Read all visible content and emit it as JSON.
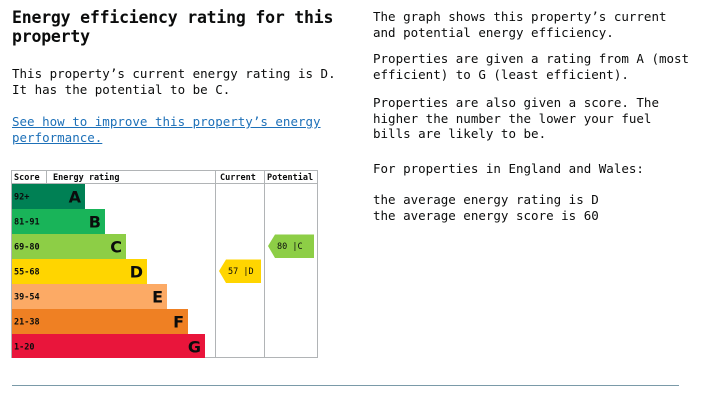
{
  "left": {
    "title": "Energy efficiency rating for this property",
    "current_text": "This property’s current energy rating is D. It has the potential to be C.",
    "link_text": "See how to improve this property’s energy performance."
  },
  "right": {
    "p1": "The graph shows this property’s current and potential energy efficiency.",
    "p2": "Properties are given a rating from A (most efficient) to G (least efficient).",
    "p3": "Properties are also given a score. The higher the number the lower your fuel bills are likely to be.",
    "p4": "For properties in England and Wales:",
    "p5a": "the average energy rating is D",
    "p5b": "the average energy score is 60"
  },
  "chart_data": {
    "type": "table",
    "headers": {
      "score": "Score",
      "rating": "Energy rating",
      "current": "Current",
      "potential": "Potential"
    },
    "bands": [
      {
        "score": "92+",
        "letter": "A",
        "color": "#008054",
        "width": 0.24
      },
      {
        "score": "81-91",
        "letter": "B",
        "color": "#19b459",
        "width": 0.37
      },
      {
        "score": "69-80",
        "letter": "C",
        "color": "#8dce46",
        "width": 0.5
      },
      {
        "score": "55-68",
        "letter": "D",
        "color": "#ffd500",
        "width": 0.63
      },
      {
        "score": "39-54",
        "letter": "E",
        "color": "#fcaa65",
        "width": 0.76
      },
      {
        "score": "21-38",
        "letter": "F",
        "color": "#ef8023",
        "width": 0.89
      },
      {
        "score": "1-20",
        "letter": "G",
        "color": "#e9153b",
        "width": 1.0
      }
    ],
    "current": {
      "score": 57,
      "letter": "D",
      "label": "57 |D",
      "color": "#ffd500"
    },
    "potential": {
      "score": 80,
      "letter": "C",
      "label": "80 |C",
      "color": "#8dce46"
    }
  }
}
